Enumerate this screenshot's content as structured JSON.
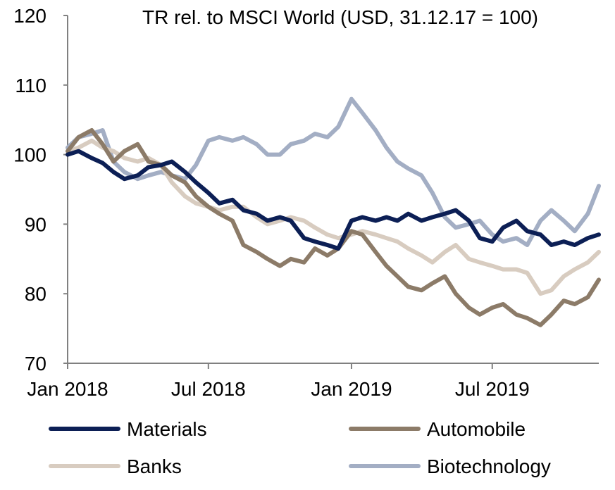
{
  "chart_data": {
    "type": "line",
    "title": "TR rel. to MSCI World (USD, 31.12.17 = 100)",
    "xlabel": "",
    "ylabel": "",
    "ylim": [
      70,
      120
    ],
    "yticks": [
      "70",
      "80",
      "90",
      "100",
      "110",
      "120"
    ],
    "xlim": [
      "2018-01-01",
      "2019-11-15"
    ],
    "xticks": [
      {
        "label": "Jan 2018",
        "date": "2018-01-01"
      },
      {
        "label": "Jul 2018",
        "date": "2018-07-01"
      },
      {
        "label": "Jan 2019",
        "date": "2019-01-01"
      },
      {
        "label": "Jul 2019",
        "date": "2019-07-01"
      }
    ],
    "grid": false,
    "legend_position": "bottom",
    "x": [
      "2018-01-01",
      "2018-01-15",
      "2018-02-01",
      "2018-02-15",
      "2018-03-01",
      "2018-03-15",
      "2018-04-01",
      "2018-04-15",
      "2018-05-01",
      "2018-05-15",
      "2018-06-01",
      "2018-06-15",
      "2018-07-01",
      "2018-07-15",
      "2018-08-01",
      "2018-08-15",
      "2018-09-01",
      "2018-09-15",
      "2018-10-01",
      "2018-10-15",
      "2018-11-01",
      "2018-11-15",
      "2018-12-01",
      "2018-12-15",
      "2019-01-01",
      "2019-01-15",
      "2019-02-01",
      "2019-02-15",
      "2019-03-01",
      "2019-03-15",
      "2019-04-01",
      "2019-04-15",
      "2019-05-01",
      "2019-05-15",
      "2019-06-01",
      "2019-06-15",
      "2019-07-01",
      "2019-07-15",
      "2019-08-01",
      "2019-08-15",
      "2019-09-01",
      "2019-09-15",
      "2019-10-01",
      "2019-10-15",
      "2019-11-01",
      "2019-11-15"
    ],
    "series": [
      {
        "name": "Materials",
        "color": "#0c1f55",
        "values": [
          100.0,
          100.5,
          99.5,
          98.8,
          97.5,
          96.5,
          97.0,
          98.2,
          98.5,
          99.0,
          97.5,
          96.0,
          94.5,
          93.0,
          93.5,
          92.0,
          91.5,
          90.5,
          91.0,
          90.5,
          88.0,
          87.5,
          87.0,
          86.5,
          90.5,
          91.0,
          90.5,
          91.0,
          90.5,
          91.5,
          90.5,
          91.0,
          91.5,
          92.0,
          90.5,
          88.0,
          87.5,
          89.5,
          90.5,
          89.0,
          88.5,
          87.0,
          87.5,
          87.0,
          88.0,
          88.5
        ]
      },
      {
        "name": "Automobile",
        "color": "#8c7b68",
        "values": [
          100.5,
          102.5,
          103.5,
          101.5,
          99.0,
          100.5,
          101.5,
          99.0,
          98.5,
          97.0,
          96.0,
          94.0,
          92.5,
          91.5,
          90.5,
          87.0,
          86.0,
          85.0,
          84.0,
          85.0,
          84.5,
          86.5,
          85.5,
          86.5,
          89.0,
          88.5,
          86.0,
          84.0,
          82.5,
          81.0,
          80.5,
          81.5,
          82.5,
          80.0,
          78.0,
          77.0,
          78.0,
          78.5,
          77.0,
          76.5,
          75.5,
          77.0,
          79.0,
          78.5,
          79.5,
          82.0
        ]
      },
      {
        "name": "Banks",
        "color": "#d8ccc0",
        "values": [
          100.5,
          101.0,
          102.0,
          101.0,
          100.5,
          99.5,
          99.0,
          99.5,
          98.5,
          96.0,
          94.0,
          93.0,
          92.5,
          92.0,
          92.5,
          92.5,
          91.0,
          90.0,
          90.5,
          91.0,
          90.5,
          89.5,
          88.5,
          88.0,
          88.5,
          89.0,
          88.5,
          88.0,
          87.5,
          86.5,
          85.5,
          84.5,
          86.0,
          87.0,
          85.0,
          84.5,
          84.0,
          83.5,
          83.5,
          83.0,
          80.0,
          80.5,
          82.5,
          83.5,
          84.5,
          86.0
        ]
      },
      {
        "name": "Biotechnology",
        "color": "#a3aec4",
        "values": [
          101.0,
          102.5,
          103.0,
          103.5,
          99.0,
          97.5,
          96.5,
          97.0,
          97.5,
          97.0,
          96.5,
          98.5,
          102.0,
          102.5,
          102.0,
          102.5,
          101.5,
          100.0,
          100.0,
          101.5,
          102.0,
          103.0,
          102.5,
          104.0,
          108.0,
          106.0,
          103.5,
          101.0,
          99.0,
          98.0,
          97.0,
          94.5,
          91.0,
          89.5,
          90.0,
          90.5,
          88.5,
          87.5,
          88.0,
          87.0,
          90.5,
          92.0,
          90.5,
          89.0,
          91.5,
          95.5
        ]
      }
    ]
  }
}
